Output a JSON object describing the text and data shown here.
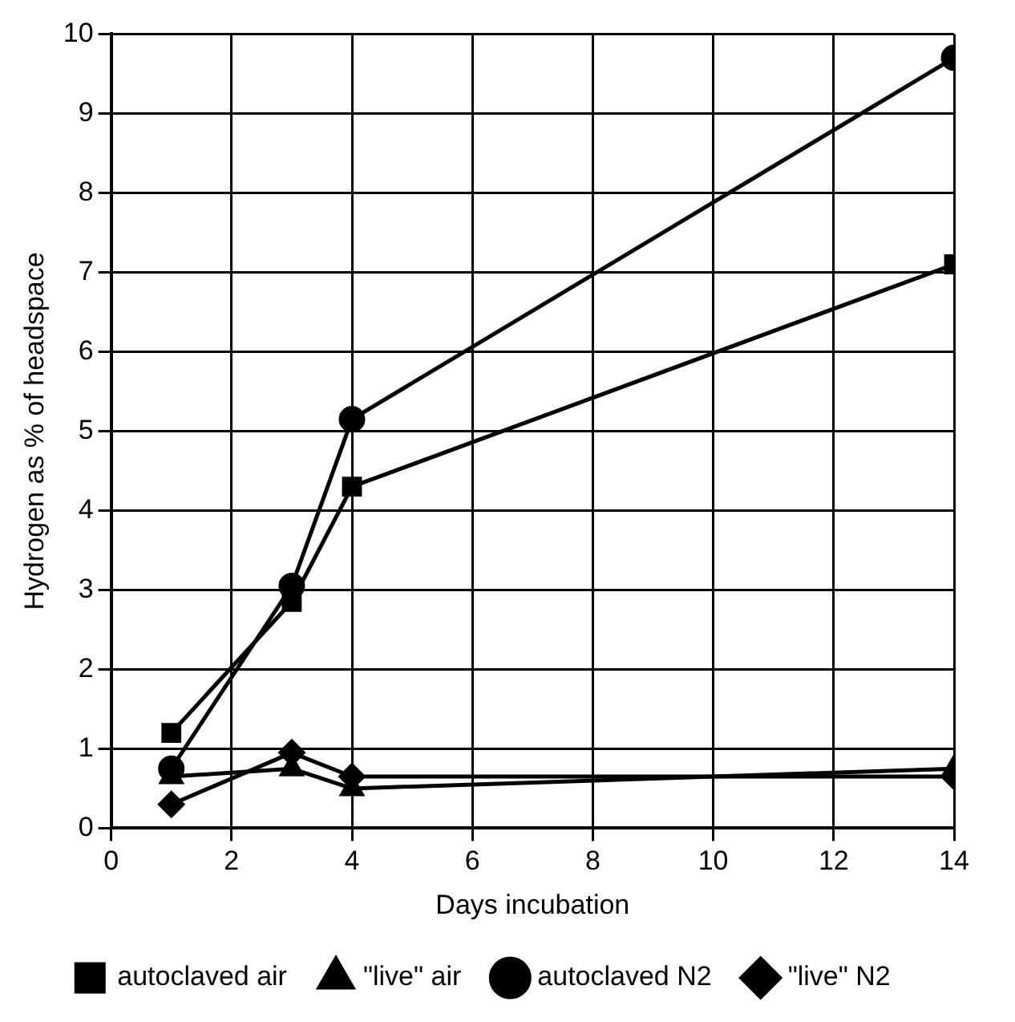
{
  "chart_data": {
    "type": "line",
    "xlabel": "Days incubation",
    "ylabel": "Hydrogen as % of headspace",
    "x": [
      1,
      3,
      4,
      14
    ],
    "xlim": [
      0,
      14
    ],
    "xticks": [
      0,
      2,
      4,
      6,
      8,
      10,
      12,
      14
    ],
    "ylim": [
      0,
      10
    ],
    "yticks": [
      0,
      1,
      2,
      3,
      4,
      5,
      6,
      7,
      8,
      9,
      10
    ],
    "grid": true,
    "legend": "bottom",
    "line_style": "solid",
    "series": [
      {
        "name": "autoclaved air",
        "color": "#000000",
        "marker": "square",
        "values": [
          1.2,
          2.85,
          4.3,
          7.1
        ]
      },
      {
        "name": "\"live\" air",
        "color": "#000000",
        "marker": "triangle",
        "values": [
          0.65,
          0.75,
          0.5,
          0.75
        ]
      },
      {
        "name": "autoclaved N2",
        "color": "#000000",
        "marker": "circle",
        "values": [
          0.75,
          3.05,
          5.15,
          9.7
        ]
      },
      {
        "name": "\"live\" N2",
        "color": "#000000",
        "marker": "diamond",
        "values": [
          0.3,
          0.95,
          0.65,
          0.65
        ]
      }
    ]
  }
}
